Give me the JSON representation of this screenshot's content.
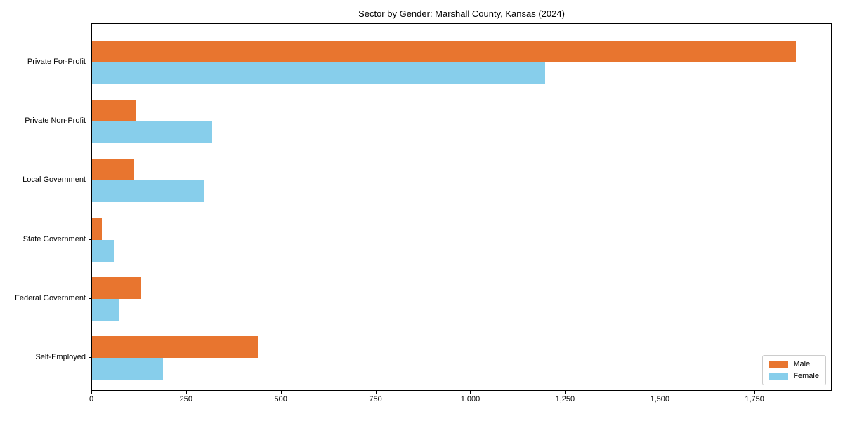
{
  "title": "Sector by Gender: Marshall County, Kansas (2024)",
  "colors": {
    "male": "#E8752F",
    "female": "#87CEEB",
    "axis": "#000000",
    "legend_border": "#CCCCCC",
    "background": "#FFFFFF"
  },
  "chart_data": {
    "type": "bar",
    "orientation": "horizontal",
    "title": "Sector by Gender: Marshall County, Kansas (2024)",
    "categories": [
      "Private For-Profit",
      "Private Non-Profit",
      "Local Government",
      "State Government",
      "Federal Government",
      "Self-Employed"
    ],
    "series": [
      {
        "name": "Male",
        "color": "#E8752F",
        "values": [
          1857,
          115,
          112,
          26,
          129,
          438
        ]
      },
      {
        "name": "Female",
        "color": "#87CEEB",
        "values": [
          1196,
          317,
          294,
          57,
          72,
          188
        ]
      }
    ],
    "xlabel": "",
    "ylabel": "",
    "xlim": [
      0,
      1950
    ],
    "x_ticks": [
      {
        "value": 0,
        "label": "0"
      },
      {
        "value": 250,
        "label": "250"
      },
      {
        "value": 500,
        "label": "500"
      },
      {
        "value": 750,
        "label": "750"
      },
      {
        "value": 1000,
        "label": "1,000"
      },
      {
        "value": 1250,
        "label": "1,250"
      },
      {
        "value": 1500,
        "label": "1,500"
      },
      {
        "value": 1750,
        "label": "1,750"
      }
    ],
    "grid": false,
    "legend_position": "lower right"
  }
}
